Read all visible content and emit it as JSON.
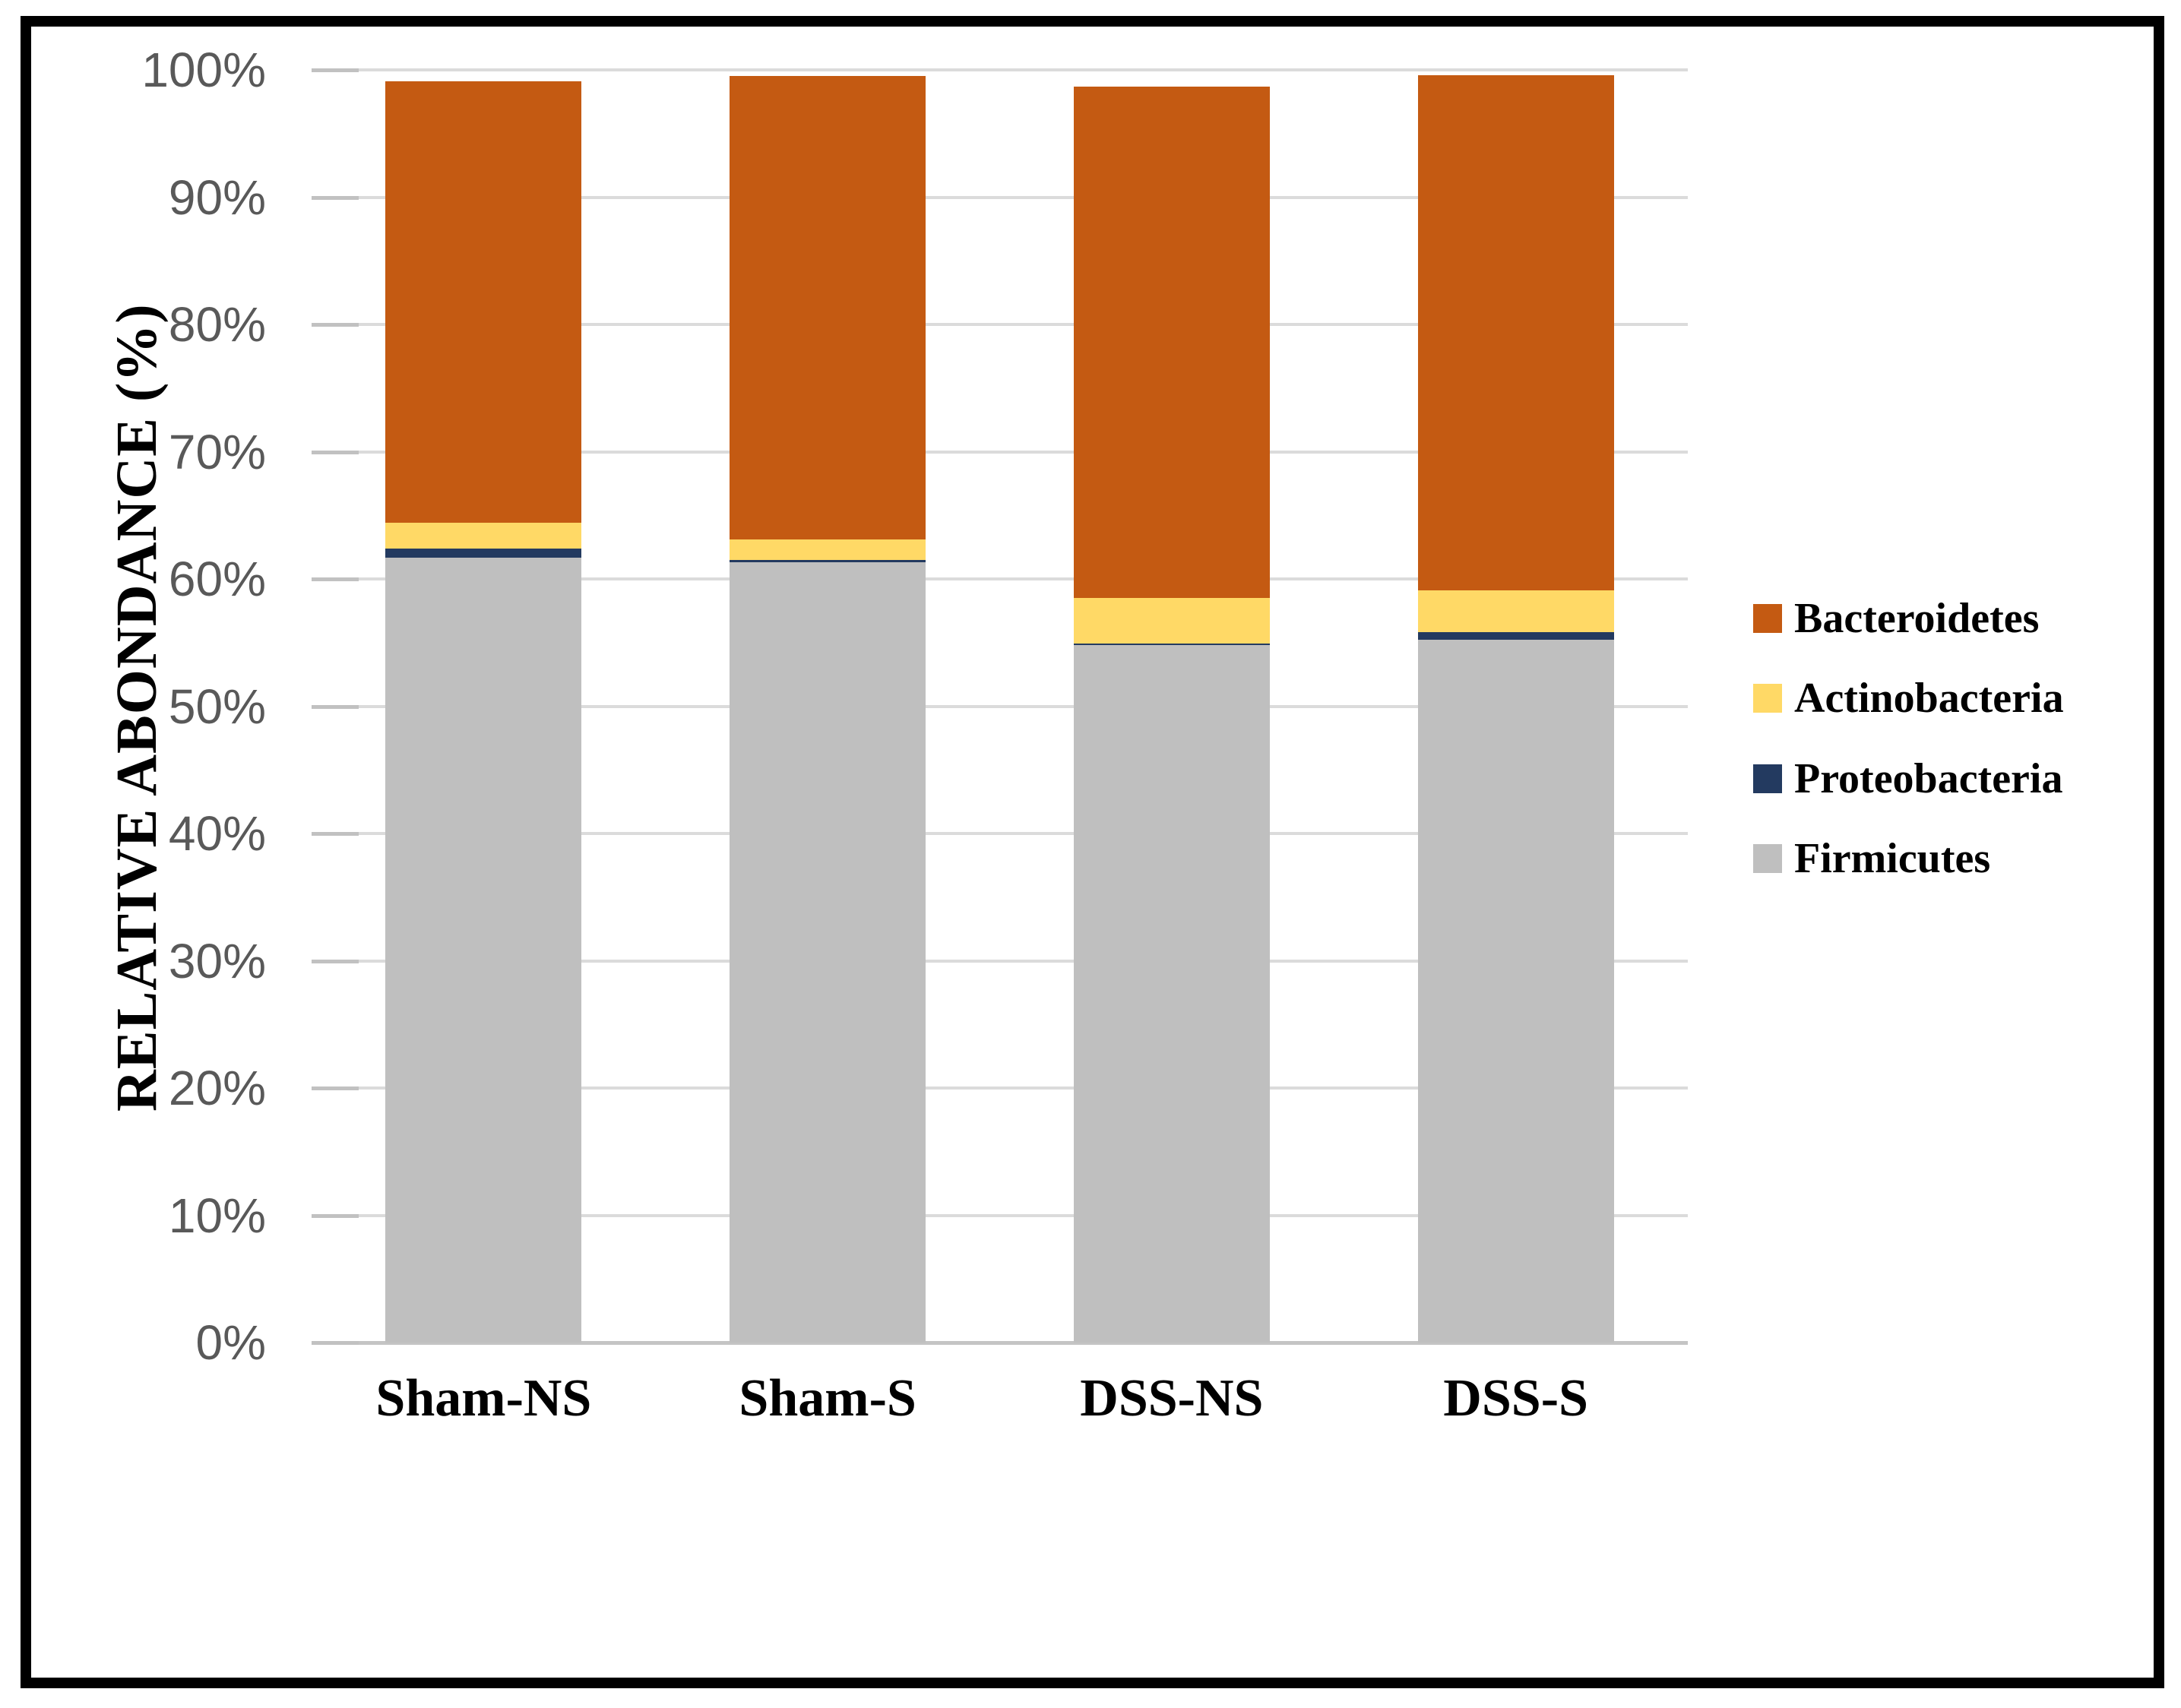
{
  "figure": {
    "background_color": "#FFFFFF",
    "border_color": "#000000",
    "y_axis_title": "RELATIVE ABONDANCE (%)"
  },
  "chart_data": {
    "type": "bar",
    "stacked": true,
    "title": "",
    "xlabel": "",
    "ylabel": "RELATIVE ABONDANCE (%)",
    "categories": [
      "Sham-NS",
      "Sham-S",
      "DSS-NS",
      "DSS-S"
    ],
    "series": [
      {
        "name": "Firmicutes",
        "color": "#BFBFBF",
        "values": [
          61.7,
          61.3,
          54.8,
          55.2
        ]
      },
      {
        "name": "Proteobacteria",
        "color": "#233A60",
        "values": [
          0.7,
          0.2,
          0.1,
          0.6
        ]
      },
      {
        "name": "Actinobacteria",
        "color": "#FFD966",
        "values": [
          2.0,
          1.6,
          3.6,
          3.3
        ]
      },
      {
        "name": "Bacteroidetes",
        "color": "#C45A12",
        "values": [
          34.7,
          36.4,
          40.2,
          40.5
        ]
      }
    ],
    "stack_totals": [
      99.1,
      99.5,
      98.7,
      99.6
    ],
    "ylim": [
      0,
      100
    ],
    "ytick_step": 10,
    "ytick_labels": [
      "0%",
      "10%",
      "20%",
      "30%",
      "40%",
      "50%",
      "60%",
      "70%",
      "80%",
      "90%",
      "100%"
    ],
    "grid": true,
    "gridline_color": "#DBDBDB",
    "axis_line_color": "#C4C4C4",
    "tick_label_color": "#595959",
    "legend_position": "right",
    "legend_order": [
      "Bacteroidetes",
      "Actinobacteria",
      "Proteobacteria",
      "Firmicutes"
    ]
  }
}
